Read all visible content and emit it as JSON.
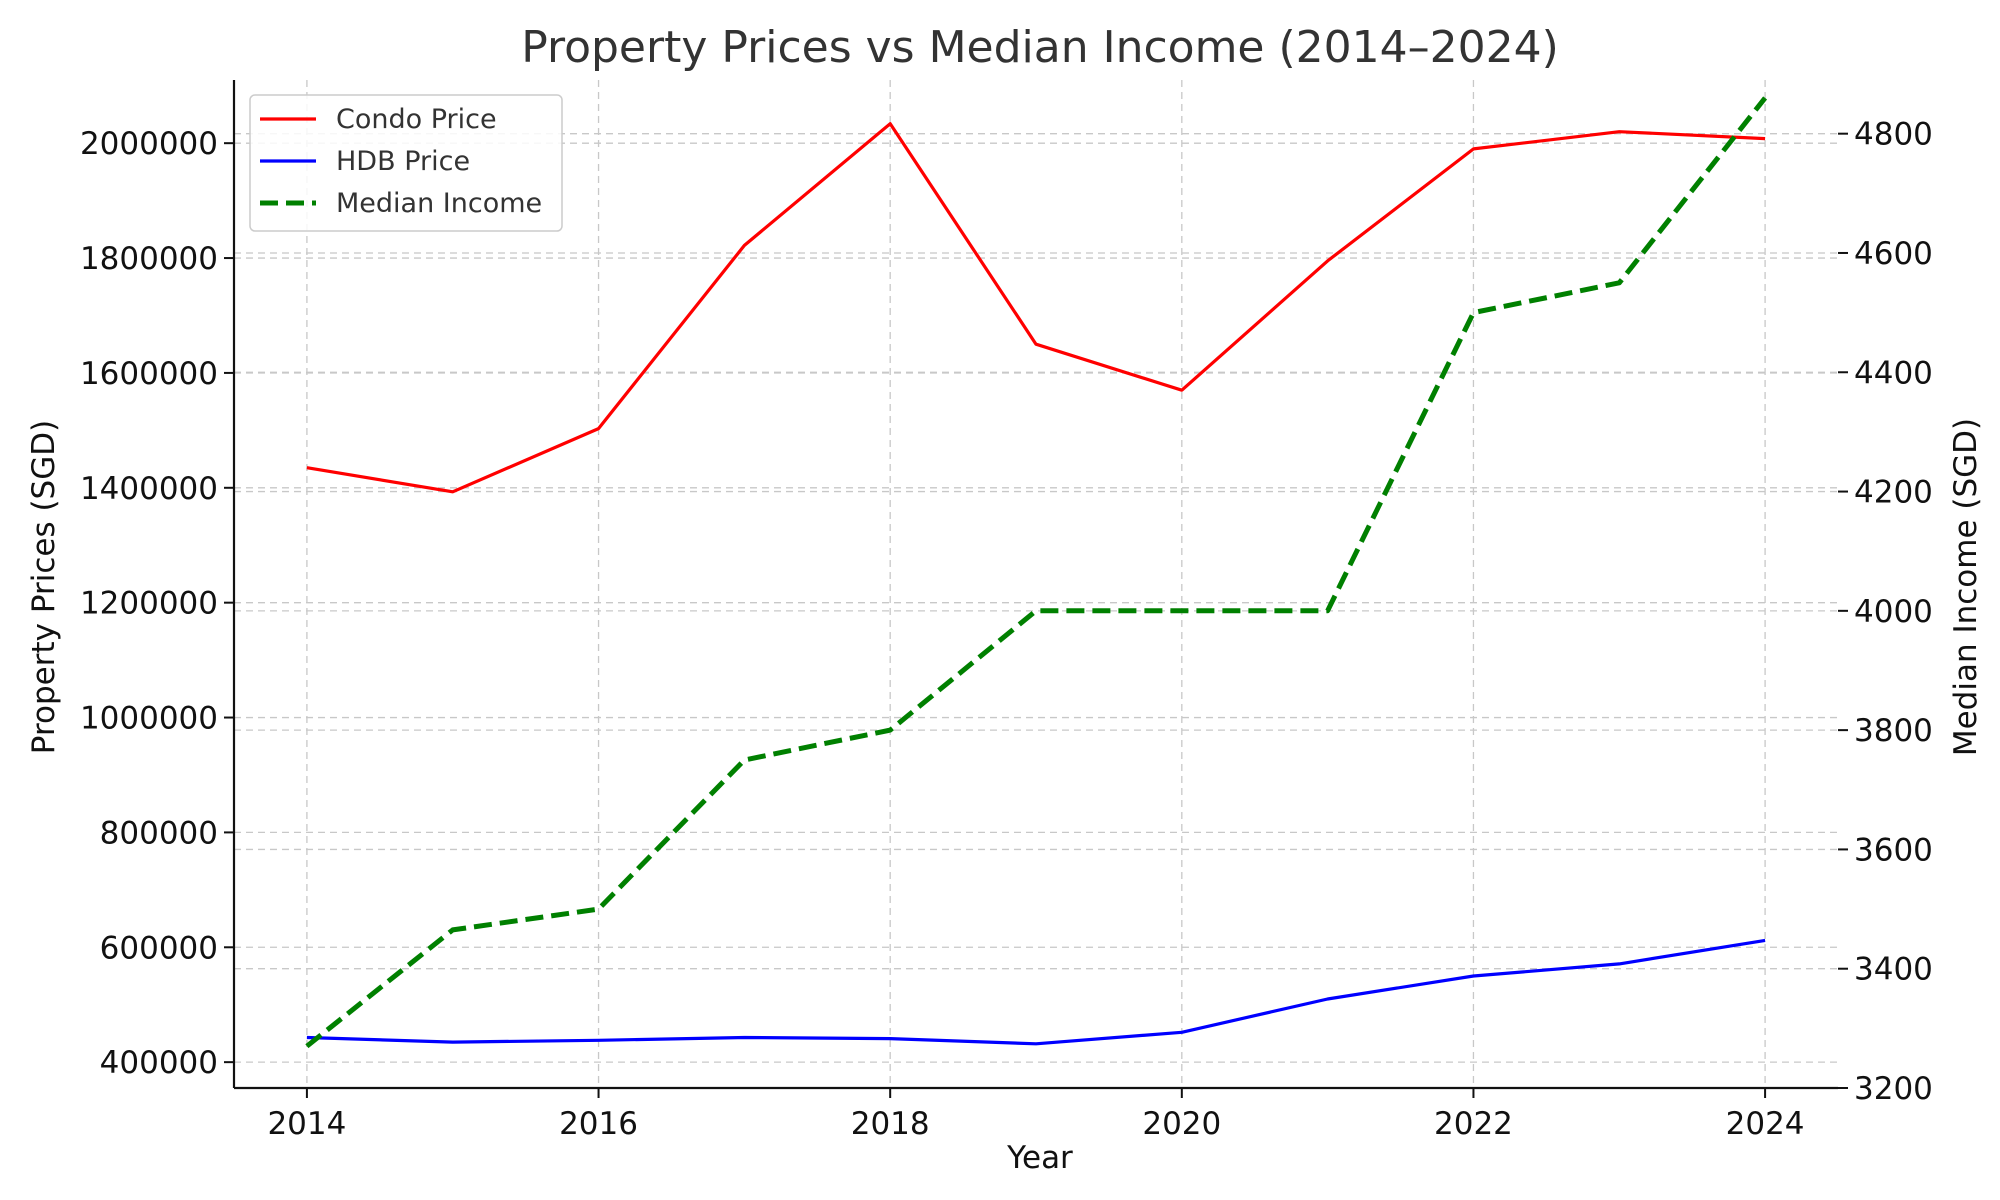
{
  "chart_data": {
    "type": "line",
    "title": "Property Prices vs Median Income (2014–2024)",
    "xlabel": "Year",
    "ylabel_left": "Property Prices (SGD)",
    "ylabel_right": "Median Income (SGD)",
    "x": [
      2014,
      2015,
      2016,
      2017,
      2018,
      2019,
      2020,
      2021,
      2022,
      2023,
      2024
    ],
    "xlim": [
      2013.5,
      2024.5
    ],
    "x_ticks": [
      2014,
      2016,
      2018,
      2020,
      2022,
      2024
    ],
    "ylim_left": [
      355000,
      2110000
    ],
    "y_ticks_left": [
      400000,
      600000,
      800000,
      1000000,
      1200000,
      1400000,
      1600000,
      1800000,
      2000000
    ],
    "ylim_right": [
      3200,
      4890
    ],
    "y_ticks_right": [
      3200,
      3400,
      3600,
      3800,
      4000,
      4200,
      4400,
      4600,
      4800
    ],
    "grid": true,
    "legend_position": "top-left",
    "series": [
      {
        "name": "Condo Price",
        "axis": "left",
        "color": "#ff0000",
        "style": "solid",
        "values": [
          1435000,
          1393000,
          1503000,
          1822000,
          2034000,
          1650000,
          1570000,
          1795000,
          1990000,
          2020000,
          2008000
        ]
      },
      {
        "name": "HDB Price",
        "axis": "left",
        "color": "#0000ff",
        "style": "solid",
        "values": [
          443000,
          435000,
          438000,
          443000,
          441000,
          432000,
          452000,
          510000,
          550000,
          571000,
          612000
        ]
      },
      {
        "name": "Median Income",
        "axis": "right",
        "color": "#008000",
        "style": "dashed",
        "values": [
          3270,
          3465,
          3500,
          3750,
          3800,
          4000,
          4000,
          4000,
          4500,
          4550,
          4860
        ]
      }
    ]
  }
}
